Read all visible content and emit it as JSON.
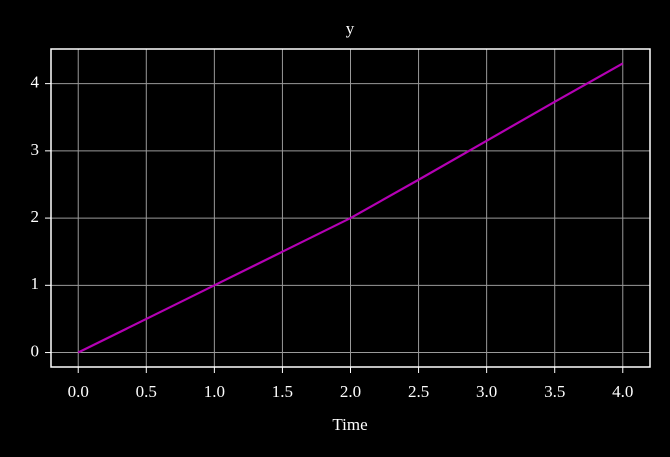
{
  "chart_data": {
    "type": "line",
    "title": "y",
    "x_label": "Time",
    "x": [
      0,
      0.5,
      1,
      1.5,
      2,
      2.5,
      3,
      3.5,
      4
    ],
    "series": [
      {
        "name": "y",
        "color": "#b400b4",
        "values": [
          0,
          0.5,
          1,
          1.5,
          2,
          2.57,
          3.15,
          3.73,
          4.3
        ]
      }
    ],
    "xlim": [
      -0.2,
      4.2
    ],
    "xticks": [
      {
        "value": 0,
        "label": "0.0"
      },
      {
        "value": 0.5,
        "label": "0.5"
      },
      {
        "value": 1,
        "label": "1.0"
      },
      {
        "value": 1.5,
        "label": "1.5"
      },
      {
        "value": 2,
        "label": "2.0"
      },
      {
        "value": 2.5,
        "label": "2.5"
      },
      {
        "value": 3,
        "label": "3.0"
      },
      {
        "value": 3.5,
        "label": "3.5"
      },
      {
        "value": 4,
        "label": "4.0"
      }
    ],
    "ylim": [
      -0.215,
      4.515
    ],
    "yticks": [
      0,
      1,
      2,
      3,
      4
    ],
    "grid": true
  }
}
